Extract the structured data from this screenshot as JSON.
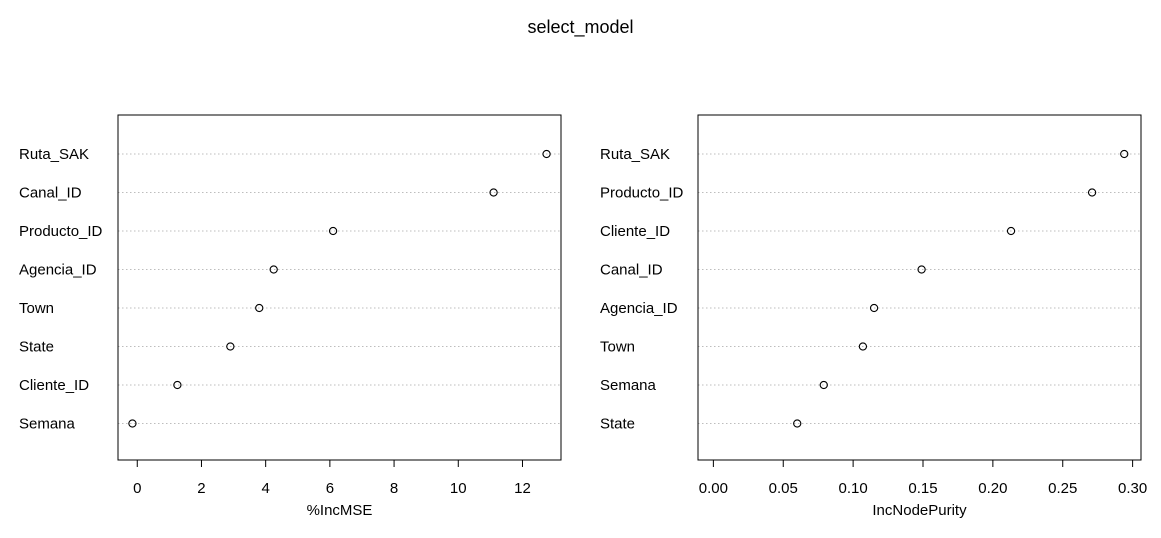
{
  "title": "select_model",
  "chart_data": [
    {
      "type": "scatter",
      "subtype": "dotchart",
      "xlabel": "%IncMSE",
      "ylabel": "",
      "xlim": [
        -0.6,
        13.2
      ],
      "xticks": [
        0,
        2,
        4,
        6,
        8,
        10,
        12
      ],
      "xtick_labels": [
        "0",
        "2",
        "4",
        "6",
        "8",
        "10",
        "12"
      ],
      "grid": "dotted horizontal",
      "categories": [
        "Ruta_SAK",
        "Canal_ID",
        "Producto_ID",
        "Agencia_ID",
        "Town",
        "State",
        "Cliente_ID",
        "Semana"
      ],
      "values": [
        12.75,
        11.1,
        6.1,
        4.25,
        3.8,
        2.9,
        1.25,
        -0.15
      ]
    },
    {
      "type": "scatter",
      "subtype": "dotchart",
      "xlabel": "IncNodePurity",
      "ylabel": "",
      "xlim": [
        -0.011,
        0.306
      ],
      "xticks": [
        0.0,
        0.05,
        0.1,
        0.15,
        0.2,
        0.25,
        0.3
      ],
      "xtick_labels": [
        "0.00",
        "0.05",
        "0.10",
        "0.15",
        "0.20",
        "0.25",
        "0.30"
      ],
      "grid": "dotted horizontal",
      "categories": [
        "Ruta_SAK",
        "Producto_ID",
        "Cliente_ID",
        "Canal_ID",
        "Agencia_ID",
        "Town",
        "Semana",
        "State"
      ],
      "values": [
        0.294,
        0.271,
        0.213,
        0.149,
        0.115,
        0.107,
        0.079,
        0.06
      ]
    }
  ]
}
